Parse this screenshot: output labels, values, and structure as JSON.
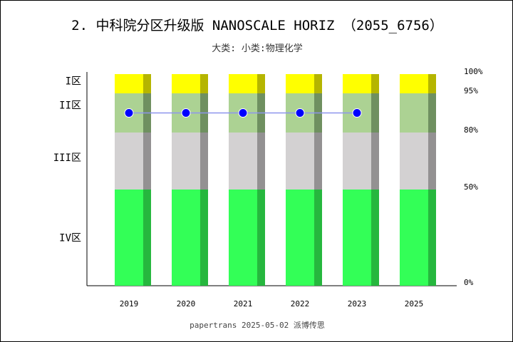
{
  "title": "2. 中科院分区升级版 NANOSCALE HORIZ （2055_6756）",
  "subtitle": "大类:  小类:物理化学",
  "footer": "papertrans 2025-05-02 派博传思",
  "chart_data": {
    "type": "bar",
    "categories": [
      "2019",
      "2020",
      "2021",
      "2022",
      "2023",
      "2025"
    ],
    "zones": [
      {
        "label": "I区",
        "from": 95,
        "to": 100,
        "color": "#ffff00",
        "shade": "#b5b500"
      },
      {
        "label": "II区",
        "from": 80,
        "to": 95,
        "color": "#acd293",
        "shade": "#6f9060"
      },
      {
        "label": "III区",
        "from": 50,
        "to": 80,
        "color": "#d3d1d2",
        "shade": "#939192"
      },
      {
        "label": "IV区",
        "from": 0,
        "to": 50,
        "color": "#33ff57",
        "shade": "#26b73e"
      }
    ],
    "right_ticks": [
      "100%",
      "95%",
      "80%",
      "50%",
      "0%"
    ],
    "series": [
      {
        "type": "line",
        "values": [
          "II区",
          "II区",
          "II区",
          "II区",
          "II区",
          null
        ],
        "color": "#0000ff",
        "line_color": "#8d95ee"
      }
    ]
  }
}
